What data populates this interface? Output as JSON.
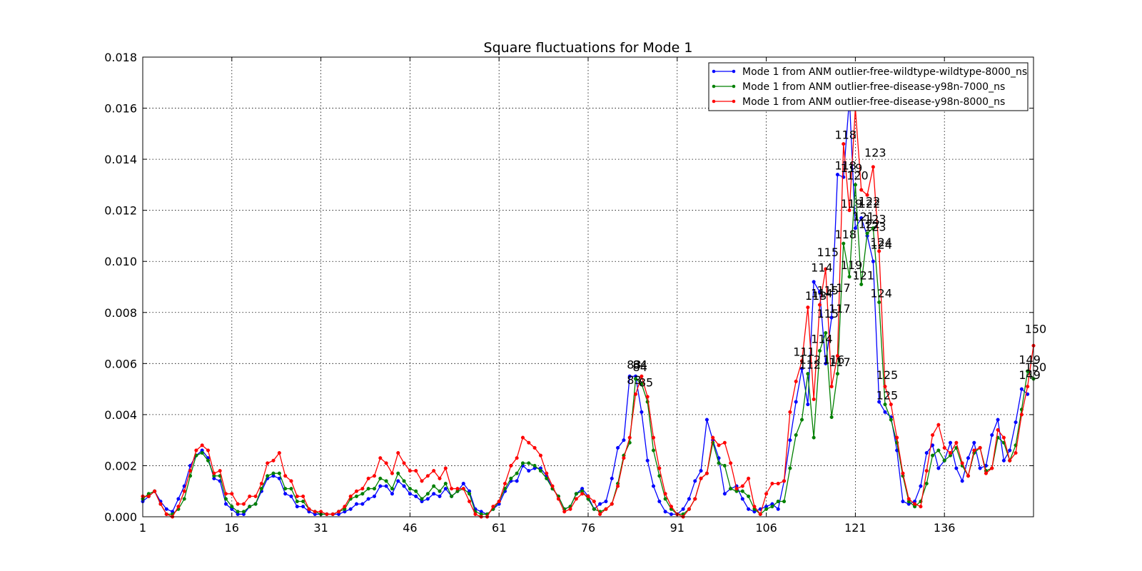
{
  "chart_data": {
    "type": "line",
    "title": "Square fluctuations for Mode 1",
    "xlabel": "",
    "ylabel": "",
    "xlim": [
      1,
      151
    ],
    "ylim": [
      0,
      0.018
    ],
    "x_ticks": [
      "1",
      "16",
      "31",
      "46",
      "61",
      "76",
      "91",
      "106",
      "121",
      "136"
    ],
    "y_ticks": [
      "0.000",
      "0.002",
      "0.004",
      "0.006",
      "0.008",
      "0.010",
      "0.012",
      "0.014",
      "0.016",
      "0.018"
    ],
    "grid": true,
    "legend_position": "top-right",
    "series": [
      {
        "name": "Mode 1 from ANM outlier-free-wildtype-wildtype-8000_ns",
        "color": "#0000ff",
        "values": [
          0.0006,
          0.0008,
          0.001,
          0.0006,
          0.0003,
          0.0002,
          0.0007,
          0.0012,
          0.002,
          0.0024,
          0.0026,
          0.0023,
          0.0015,
          0.0014,
          0.0005,
          0.0003,
          0.0001,
          0.0001,
          0.0004,
          0.0005,
          0.001,
          0.0015,
          0.0016,
          0.0015,
          0.0009,
          0.0008,
          0.0004,
          0.0004,
          0.0002,
          0.0001,
          0.0001,
          0.0001,
          0.0001,
          0.0001,
          0.0002,
          0.0003,
          0.0005,
          0.0005,
          0.0007,
          0.0008,
          0.0012,
          0.0012,
          0.0009,
          0.0014,
          0.0012,
          0.0009,
          0.0008,
          0.0006,
          0.0007,
          0.0009,
          0.0008,
          0.0011,
          0.0008,
          0.001,
          0.0013,
          0.001,
          0.0003,
          0.0002,
          0.0001,
          0.0003,
          0.0005,
          0.001,
          0.0014,
          0.0014,
          0.002,
          0.0018,
          0.0019,
          0.0019,
          0.0016,
          0.0011,
          0.0008,
          0.0003,
          0.0004,
          0.0009,
          0.0011,
          0.0008,
          0.0003,
          0.0005,
          0.0006,
          0.0015,
          0.0027,
          0.003,
          0.0055,
          0.0055,
          0.0041,
          0.0022,
          0.0012,
          0.0006,
          0.0002,
          0.0001,
          0.0001,
          0.0003,
          0.0007,
          0.0014,
          0.0018,
          0.0038,
          0.003,
          0.0023,
          0.0009,
          0.0011,
          0.0012,
          0.0007,
          0.0003,
          0.0002,
          0.0003,
          0.0004,
          0.0005,
          0.0003,
          0.0014,
          0.003,
          0.0045,
          0.0058,
          0.0044,
          0.0092,
          0.0088,
          0.006,
          0.0078,
          0.0134,
          0.0133,
          0.0164,
          0.0113,
          0.0117,
          0.011,
          0.01,
          0.0045,
          0.0041,
          0.0039,
          0.0026,
          0.0006,
          0.0005,
          0.0006,
          0.0012,
          0.0025,
          0.0028,
          0.0019,
          0.0022,
          0.0029,
          0.0019,
          0.0014,
          0.0023,
          0.0029,
          0.0019,
          0.002,
          0.0032,
          0.0038,
          0.0022,
          0.0026,
          0.0037,
          0.005,
          0.0048
        ]
      },
      {
        "name": "Mode 1 from ANM outlier-free-disease-y98n-7000_ns",
        "color": "#008000",
        "values": [
          0.0007,
          0.0009,
          0.001,
          0.0005,
          0.0001,
          0.0001,
          0.0003,
          0.0007,
          0.0016,
          0.0024,
          0.0025,
          0.0022,
          0.0016,
          0.0016,
          0.0007,
          0.0004,
          0.0002,
          0.0002,
          0.0004,
          0.0005,
          0.0011,
          0.0016,
          0.0017,
          0.0017,
          0.0011,
          0.0011,
          0.0006,
          0.0006,
          0.0003,
          0.0002,
          0.0001,
          0.0001,
          0.0001,
          0.0002,
          0.0003,
          0.0007,
          0.0008,
          0.0009,
          0.0011,
          0.0011,
          0.0015,
          0.0014,
          0.0011,
          0.0017,
          0.0014,
          0.0011,
          0.001,
          0.0007,
          0.0009,
          0.0012,
          0.001,
          0.0013,
          0.0008,
          0.001,
          0.0011,
          0.0009,
          0.0002,
          0.0001,
          0.0001,
          0.0003,
          0.0006,
          0.0011,
          0.0015,
          0.0017,
          0.0021,
          0.0021,
          0.002,
          0.0018,
          0.0015,
          0.0011,
          0.0008,
          0.0003,
          0.0004,
          0.0009,
          0.001,
          0.0007,
          0.0003,
          0.0002,
          0.0003,
          0.0005,
          0.0013,
          0.0024,
          0.0029,
          0.0054,
          0.0052,
          0.0045,
          0.0026,
          0.0016,
          0.0007,
          0.0003,
          0.0001,
          0.0001,
          0.0003,
          0.0007,
          0.0015,
          0.0017,
          0.0029,
          0.0021,
          0.002,
          0.0011,
          0.001,
          0.001,
          0.0008,
          0.0003,
          0.0001,
          0.0003,
          0.0004,
          0.0006,
          0.0006,
          0.0019,
          0.0032,
          0.0038,
          0.0056,
          0.0031,
          0.0065,
          0.0072,
          0.0039,
          0.0056,
          0.0107,
          0.0094,
          0.013,
          0.0091,
          0.0111,
          0.0113,
          0.0084,
          0.0044,
          0.0038,
          0.0029,
          0.0016,
          0.0006,
          0.0004,
          0.0006,
          0.0013,
          0.0024,
          0.0026,
          0.0022,
          0.0024,
          0.0027,
          0.002,
          0.0016,
          0.0025,
          0.0027,
          0.0018,
          0.0019,
          0.0031,
          0.0029,
          0.0022,
          0.0028,
          0.0042,
          0.0057,
          0.0054
        ]
      },
      {
        "name": "Mode 1 from ANM outlier-free-disease-y98n-8000_ns",
        "color": "#ff0000",
        "values": [
          0.0008,
          0.0008,
          0.001,
          0.0005,
          0.0001,
          0.0,
          0.0004,
          0.001,
          0.0018,
          0.0026,
          0.0028,
          0.0026,
          0.0017,
          0.0018,
          0.0009,
          0.0009,
          0.0005,
          0.0005,
          0.0008,
          0.0008,
          0.0013,
          0.0021,
          0.0022,
          0.0025,
          0.0016,
          0.0014,
          0.0008,
          0.0008,
          0.0003,
          0.0002,
          0.0002,
          0.0001,
          0.0001,
          0.0002,
          0.0004,
          0.0008,
          0.001,
          0.0011,
          0.0015,
          0.0016,
          0.0023,
          0.0021,
          0.0017,
          0.0025,
          0.0021,
          0.0018,
          0.0018,
          0.0014,
          0.0016,
          0.0018,
          0.0015,
          0.0019,
          0.0011,
          0.0011,
          0.0011,
          0.0006,
          0.0001,
          0.0,
          0.0,
          0.0004,
          0.0006,
          0.0013,
          0.002,
          0.0023,
          0.0031,
          0.0029,
          0.0027,
          0.0024,
          0.0017,
          0.0012,
          0.0007,
          0.0002,
          0.0003,
          0.0007,
          0.0009,
          0.0008,
          0.0006,
          0.0001,
          0.0003,
          0.0005,
          0.0012,
          0.0023,
          0.0031,
          0.0048,
          0.0055,
          0.0047,
          0.0031,
          0.0019,
          0.0009,
          0.0004,
          0.0001,
          0.0,
          0.0003,
          0.0007,
          0.0015,
          0.0017,
          0.0031,
          0.0028,
          0.0029,
          0.0021,
          0.0011,
          0.0012,
          0.0015,
          0.0004,
          0.0001,
          0.0009,
          0.0013,
          0.0013,
          0.0014,
          0.0041,
          0.0053,
          0.0061,
          0.0082,
          0.0046,
          0.0083,
          0.0097,
          0.0051,
          0.0063,
          0.0146,
          0.012,
          0.016,
          0.0128,
          0.0126,
          0.0137,
          0.0104,
          0.0051,
          0.0044,
          0.0031,
          0.0017,
          0.0007,
          0.0005,
          0.0004,
          0.0018,
          0.0032,
          0.0036,
          0.0027,
          0.0025,
          0.0029,
          0.0021,
          0.0016,
          0.0026,
          0.0027,
          0.0017,
          0.0019,
          0.0034,
          0.0031,
          0.0022,
          0.0025,
          0.004,
          0.0051,
          0.0067
        ]
      }
    ],
    "annotations": [
      {
        "text": "83",
        "x": 83,
        "y": 0.0058
      },
      {
        "text": "84",
        "x": 84,
        "y": 0.0058
      },
      {
        "text": "84",
        "x": 84,
        "y": 0.0057
      },
      {
        "text": "84",
        "x": 84,
        "y": 0.0058
      },
      {
        "text": "83",
        "x": 83,
        "y": 0.0052
      },
      {
        "text": "85",
        "x": 85,
        "y": 0.0051
      },
      {
        "text": "111",
        "x": 111,
        "y": 0.0063
      },
      {
        "text": "112",
        "x": 112,
        "y": 0.006
      },
      {
        "text": "112",
        "x": 112,
        "y": 0.0058
      },
      {
        "text": "113",
        "x": 113,
        "y": 0.0085
      },
      {
        "text": "114",
        "x": 114,
        "y": 0.0086
      },
      {
        "text": "114",
        "x": 114,
        "y": 0.0096
      },
      {
        "text": "114",
        "x": 114,
        "y": 0.0068
      },
      {
        "text": "115",
        "x": 115,
        "y": 0.0102
      },
      {
        "text": "115",
        "x": 115,
        "y": 0.0087
      },
      {
        "text": "115",
        "x": 115,
        "y": 0.0078
      },
      {
        "text": "116",
        "x": 116,
        "y": 0.006
      },
      {
        "text": "117",
        "x": 117,
        "y": 0.0059
      },
      {
        "text": "117",
        "x": 117,
        "y": 0.008
      },
      {
        "text": "117",
        "x": 117,
        "y": 0.0088
      },
      {
        "text": "118",
        "x": 118,
        "y": 0.0148
      },
      {
        "text": "118",
        "x": 118,
        "y": 0.0136
      },
      {
        "text": "118",
        "x": 118,
        "y": 0.0109
      },
      {
        "text": "119",
        "x": 119,
        "y": 0.0135
      },
      {
        "text": "119",
        "x": 119,
        "y": 0.0121
      },
      {
        "text": "119",
        "x": 119,
        "y": 0.0097
      },
      {
        "text": "120",
        "x": 120,
        "y": 0.0132
      },
      {
        "text": "121",
        "x": 121,
        "y": 0.0116
      },
      {
        "text": "121",
        "x": 121,
        "y": 0.0093
      },
      {
        "text": "122",
        "x": 122,
        "y": 0.0121
      },
      {
        "text": "122",
        "x": 122,
        "y": 0.0113
      },
      {
        "text": "122",
        "x": 122,
        "y": 0.0122
      },
      {
        "text": "123",
        "x": 123,
        "y": 0.0141
      },
      {
        "text": "123",
        "x": 123,
        "y": 0.0115
      },
      {
        "text": "123",
        "x": 123,
        "y": 0.0112
      },
      {
        "text": "124",
        "x": 124,
        "y": 0.0106
      },
      {
        "text": "124",
        "x": 124,
        "y": 0.0105
      },
      {
        "text": "124",
        "x": 124,
        "y": 0.0086
      },
      {
        "text": "125",
        "x": 125,
        "y": 0.0054
      },
      {
        "text": "125",
        "x": 125,
        "y": 0.0046
      },
      {
        "text": "149",
        "x": 149,
        "y": 0.006
      },
      {
        "text": "149",
        "x": 149,
        "y": 0.0054
      },
      {
        "text": "150",
        "x": 150,
        "y": 0.0072
      },
      {
        "text": "150",
        "x": 150,
        "y": 0.0057
      }
    ]
  }
}
